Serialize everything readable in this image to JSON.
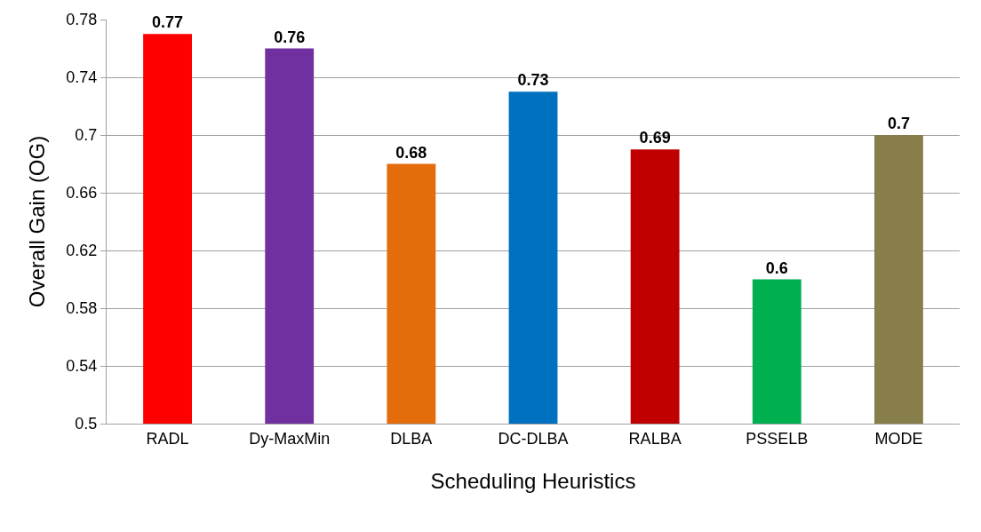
{
  "chart_data": {
    "type": "bar",
    "xlabel": "Scheduling Heuristics",
    "ylabel": "Overall Gain (OG)",
    "categories": [
      "RADL",
      "Dy-MaxMin",
      "DLBA",
      "DC-DLBA",
      "RALBA",
      "PSSELB",
      "MODE"
    ],
    "values": [
      0.77,
      0.76,
      0.68,
      0.73,
      0.69,
      0.6,
      0.7
    ],
    "colors": [
      "#ff0000",
      "#7030a0",
      "#e46c0a",
      "#0070c0",
      "#c00000",
      "#00b050",
      "#877e4b"
    ],
    "ylim": [
      0.5,
      0.78
    ],
    "yticks": [
      0.5,
      0.54,
      0.58,
      0.62,
      0.66,
      0.7,
      0.74,
      0.78
    ],
    "grid": "y",
    "data_labels": true
  }
}
